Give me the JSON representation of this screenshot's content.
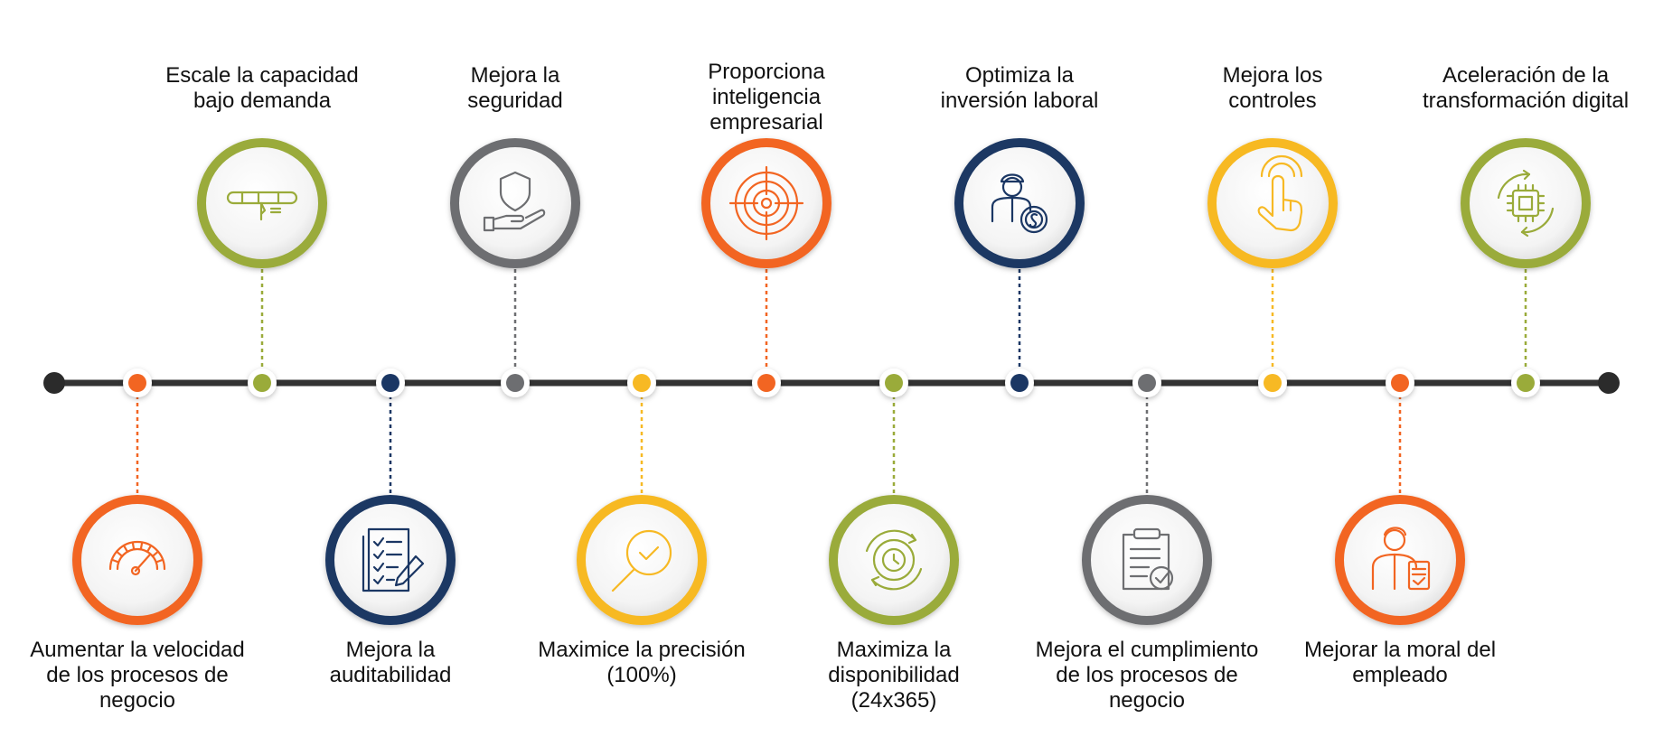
{
  "colors": {
    "orange": "#f26522",
    "green": "#9aab3a",
    "navy": "#1b3764",
    "gray": "#6d6e71",
    "yellow": "#f7b924",
    "line": "#333333"
  },
  "steps": [
    {
      "lines": [
        "Aumentar la velocidad",
        "de los procesos de",
        "negocio"
      ],
      "color": "orange",
      "icon": "speedometer-icon",
      "pos": "bottom"
    },
    {
      "lines": [
        "Escale la capacidad",
        "bajo demanda"
      ],
      "color": "green",
      "icon": "slider-scale-icon",
      "pos": "top"
    },
    {
      "lines": [
        "Mejora la",
        "auditabilidad"
      ],
      "color": "navy",
      "icon": "checklist-document-icon",
      "pos": "bottom"
    },
    {
      "lines": [
        "Mejora la",
        "seguridad"
      ],
      "color": "gray",
      "icon": "shield-hand-icon",
      "pos": "top"
    },
    {
      "lines": [
        "Maximice la precisión",
        "(100%)"
      ],
      "color": "yellow",
      "icon": "magnifier-check-icon",
      "pos": "bottom"
    },
    {
      "lines": [
        "Proporciona",
        "inteligencia",
        "empresarial"
      ],
      "color": "orange",
      "icon": "target-icon",
      "pos": "top"
    },
    {
      "lines": [
        "Maximiza la",
        "disponibilidad",
        "(24x365)"
      ],
      "color": "green",
      "icon": "clock-cycle-icon",
      "pos": "bottom"
    },
    {
      "lines": [
        "Optimiza la",
        "inversión laboral"
      ],
      "color": "navy",
      "icon": "worker-coin-icon",
      "pos": "top"
    },
    {
      "lines": [
        "Mejora el cumplimiento",
        "de los procesos de",
        "negocio"
      ],
      "color": "gray",
      "icon": "clipboard-check-icon",
      "pos": "bottom"
    },
    {
      "lines": [
        "Mejora los",
        "controles"
      ],
      "color": "yellow",
      "icon": "touch-hand-icon",
      "pos": "top"
    },
    {
      "lines": [
        "Mejorar la moral del",
        "empleado"
      ],
      "color": "orange",
      "icon": "employee-badge-icon",
      "pos": "bottom"
    },
    {
      "lines": [
        "Aceleración de la",
        "transformación digital"
      ],
      "color": "green",
      "icon": "chip-cycle-icon",
      "pos": "top"
    }
  ]
}
